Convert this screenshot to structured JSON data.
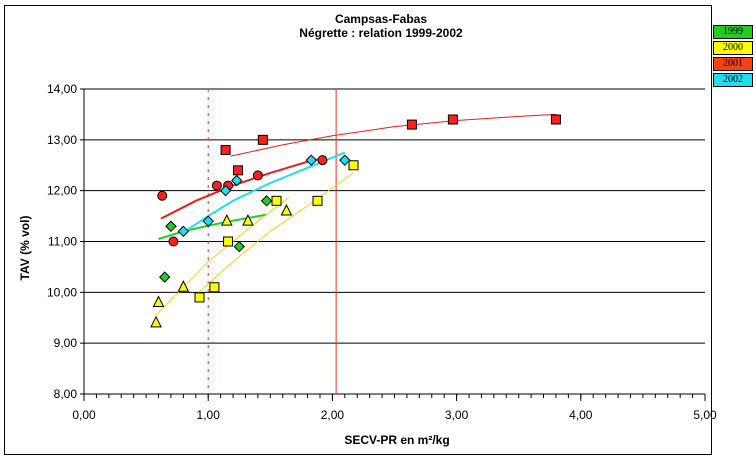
{
  "chart_data": {
    "type": "scatter",
    "title": "Campsas-Fabas",
    "subtitle": "Négrette : relation 1999-2002",
    "xlabel": "SECV-PR en m²/kg",
    "ylabel": "TAV (% vol)",
    "xlim": [
      0,
      5
    ],
    "ylim": [
      8,
      14
    ],
    "x_ticks": [
      "0,00",
      "1,00",
      "2,00",
      "3,00",
      "4,00",
      "5,00"
    ],
    "y_ticks": [
      "8,00",
      "9,00",
      "10,00",
      "11,00",
      "12,00",
      "13,00",
      "14,00"
    ],
    "grid": "horizontal",
    "legend_position": "right",
    "reference_lines": [
      {
        "x": 1.0,
        "style": "dashed",
        "color": "#e03030"
      },
      {
        "x": 2.03,
        "style": "solid",
        "color": "#e03030"
      }
    ],
    "series": [
      {
        "name": "1999",
        "marker": "diamond",
        "color": "#22cc22",
        "points": [
          [
            0.7,
            11.3
          ],
          [
            0.65,
            10.3
          ],
          [
            1.25,
            10.9
          ],
          [
            1.47,
            11.8
          ]
        ],
        "trend": [
          [
            0.6,
            11.05
          ],
          [
            0.8,
            11.2
          ],
          [
            1.0,
            11.31
          ],
          [
            1.2,
            11.41
          ],
          [
            1.47,
            11.53
          ]
        ]
      },
      {
        "name": "2000",
        "marker": "triangle-square",
        "color": "#ffff00",
        "points": [
          [
            0.58,
            9.4
          ],
          [
            0.6,
            9.8
          ],
          [
            0.8,
            10.1
          ],
          [
            1.15,
            11.4
          ],
          [
            1.32,
            11.4
          ],
          [
            1.63,
            11.6
          ],
          [
            0.93,
            9.9
          ],
          [
            1.05,
            10.1
          ],
          [
            1.16,
            11.0
          ],
          [
            1.55,
            11.8
          ],
          [
            1.88,
            11.8
          ],
          [
            2.17,
            12.5
          ]
        ],
        "trend": [
          [
            0.58,
            9.55
          ],
          [
            0.8,
            10.1
          ],
          [
            1.0,
            10.6
          ],
          [
            1.2,
            11.0
          ],
          [
            1.4,
            11.4
          ],
          [
            1.65,
            11.87
          ]
        ],
        "trend2": [
          [
            0.9,
            9.95
          ],
          [
            1.2,
            10.6
          ],
          [
            1.5,
            11.2
          ],
          [
            1.8,
            11.7
          ],
          [
            2.17,
            12.35
          ]
        ]
      },
      {
        "name": "2001",
        "marker": "circle-square",
        "color": "#ff2020",
        "points": [
          [
            0.63,
            11.9
          ],
          [
            0.72,
            11.0
          ],
          [
            1.07,
            12.1
          ],
          [
            1.16,
            12.1
          ],
          [
            1.4,
            12.3
          ],
          [
            1.92,
            12.6
          ],
          [
            1.14,
            12.8
          ],
          [
            1.44,
            13.0
          ],
          [
            1.24,
            12.4
          ],
          [
            2.64,
            13.3
          ],
          [
            2.97,
            13.4
          ],
          [
            3.8,
            13.4
          ]
        ],
        "trend": [
          [
            0.62,
            11.45
          ],
          [
            0.9,
            11.8
          ],
          [
            1.2,
            12.1
          ],
          [
            1.5,
            12.35
          ],
          [
            1.8,
            12.57
          ],
          [
            1.95,
            12.65
          ]
        ],
        "trend2": [
          [
            1.18,
            12.68
          ],
          [
            1.6,
            12.9
          ],
          [
            2.0,
            13.08
          ],
          [
            2.5,
            13.26
          ],
          [
            3.0,
            13.38
          ],
          [
            3.5,
            13.46
          ],
          [
            3.8,
            13.5
          ]
        ]
      },
      {
        "name": "2002",
        "marker": "diamond",
        "color": "#22ddee",
        "points": [
          [
            0.8,
            11.2
          ],
          [
            1.0,
            11.4
          ],
          [
            1.14,
            12.0
          ],
          [
            1.23,
            12.2
          ],
          [
            1.83,
            12.6
          ],
          [
            2.1,
            12.6
          ]
        ],
        "trend": [
          [
            0.8,
            11.18
          ],
          [
            1.0,
            11.5
          ],
          [
            1.2,
            11.8
          ],
          [
            1.5,
            12.15
          ],
          [
            1.8,
            12.45
          ],
          [
            2.1,
            12.75
          ]
        ]
      }
    ]
  }
}
